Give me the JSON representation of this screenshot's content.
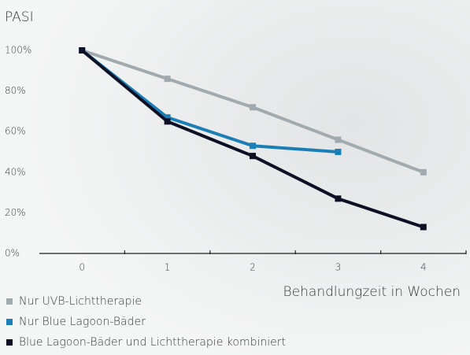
{
  "chart_data": {
    "type": "line",
    "y_label": "PASI",
    "x_label": "Behandlungzeit in Wochen",
    "x": [
      0,
      1,
      2,
      3,
      4
    ],
    "xlim": [
      -0.5,
      4.5
    ],
    "xticks": [
      0,
      1,
      2,
      3,
      4
    ],
    "ylim": [
      0,
      100
    ],
    "yticks": [
      {
        "value": 0,
        "label": "0%"
      },
      {
        "value": 20,
        "label": "20%"
      },
      {
        "value": 40,
        "label": "40%"
      },
      {
        "value": 60,
        "label": "60%"
      },
      {
        "value": 80,
        "label": "80%"
      },
      {
        "value": 100,
        "label": "100%"
      }
    ],
    "legend": "bottom-left",
    "series": [
      {
        "name": "Nur UVB-Lichttherapie",
        "color": "#a1aaae",
        "values": [
          100,
          86,
          72,
          56,
          40
        ]
      },
      {
        "name": "Nur Blue Lagoon-Bäder",
        "color": "#1b7fb6",
        "values": [
          100,
          67,
          53,
          50,
          null
        ]
      },
      {
        "name": "Blue Lagoon-Bäder und Lichttherapie kombiniert",
        "color": "#0e1126",
        "values": [
          100,
          65,
          48,
          27,
          13
        ]
      }
    ]
  }
}
